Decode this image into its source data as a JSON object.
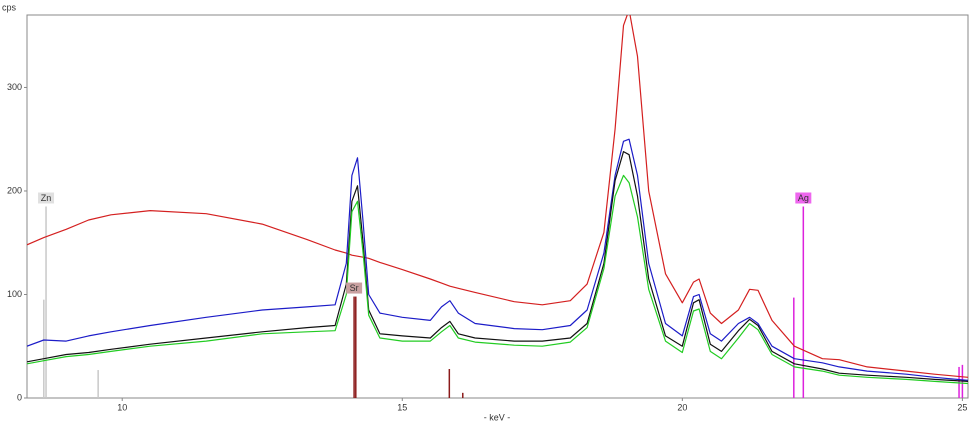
{
  "chart_data": {
    "type": "line",
    "y_label": "cps",
    "x_label": "- keV -",
    "xlim": [
      8.3,
      25.1
    ],
    "ylim": [
      0,
      370
    ],
    "xticks": [
      10,
      15,
      20,
      25
    ],
    "yticks": [
      0,
      100,
      200,
      300
    ],
    "x": [
      8.3,
      8.6,
      9.0,
      9.4,
      9.8,
      10.5,
      11.5,
      12.5,
      13.3,
      13.8,
      14.0,
      14.1,
      14.2,
      14.3,
      14.4,
      14.6,
      15.0,
      15.5,
      15.7,
      15.85,
      16.0,
      16.3,
      17.0,
      17.5,
      18.0,
      18.3,
      18.6,
      18.8,
      18.95,
      19.05,
      19.2,
      19.4,
      19.7,
      20.0,
      20.2,
      20.3,
      20.5,
      20.7,
      21.0,
      21.2,
      21.35,
      21.6,
      22.0,
      22.5,
      22.8,
      23.3,
      24.0,
      24.5,
      25.1
    ],
    "series": [
      {
        "color": "#d42020",
        "values": [
          148,
          155,
          163,
          172,
          177,
          181,
          178,
          168,
          153,
          143,
          140,
          138,
          137,
          136,
          135,
          131,
          124,
          115,
          111,
          108,
          106,
          102,
          93,
          90,
          94,
          110,
          160,
          260,
          360,
          375,
          330,
          200,
          120,
          92,
          112,
          115,
          82,
          72,
          85,
          105,
          104,
          75,
          50,
          38,
          37,
          30,
          26,
          23,
          20
        ]
      },
      {
        "color": "#1c1cc8",
        "values": [
          50,
          56,
          55,
          60,
          64,
          70,
          78,
          85,
          88,
          90,
          130,
          215,
          232,
          170,
          100,
          82,
          78,
          75,
          88,
          94,
          82,
          72,
          67,
          66,
          70,
          85,
          140,
          215,
          248,
          250,
          215,
          130,
          72,
          60,
          98,
          100,
          62,
          55,
          72,
          78,
          72,
          50,
          38,
          34,
          30,
          26,
          23,
          20,
          17
        ]
      },
      {
        "color": "#111111",
        "values": [
          35,
          38,
          42,
          44,
          47,
          52,
          58,
          64,
          68,
          70,
          110,
          190,
          205,
          150,
          85,
          62,
          60,
          58,
          68,
          74,
          62,
          58,
          55,
          55,
          58,
          72,
          130,
          210,
          238,
          235,
          195,
          115,
          60,
          50,
          92,
          95,
          52,
          45,
          65,
          76,
          70,
          45,
          33,
          28,
          24,
          22,
          20,
          18,
          16
        ]
      },
      {
        "color": "#22cc22",
        "values": [
          33,
          36,
          40,
          42,
          45,
          50,
          55,
          62,
          64,
          65,
          100,
          180,
          190,
          140,
          80,
          58,
          55,
          55,
          64,
          70,
          58,
          54,
          51,
          50,
          54,
          68,
          125,
          195,
          215,
          208,
          175,
          105,
          55,
          44,
          84,
          86,
          45,
          38,
          58,
          72,
          66,
          42,
          30,
          26,
          22,
          20,
          18,
          16,
          14
        ]
      }
    ],
    "element_lines": [
      {
        "label": "Zn",
        "color": "#c8c8c8",
        "tag_color": "#e0e0e0",
        "lines": [
          {
            "x": 8.64,
            "height": 185
          },
          {
            "x": 8.6,
            "height": 95
          },
          {
            "x": 9.57,
            "height": 27
          }
        ]
      },
      {
        "label": "Sr",
        "color": "#8b1a1a",
        "tag_color": "#c9a0a0",
        "lines": [
          {
            "x": 14.14,
            "height": 98
          },
          {
            "x": 14.17,
            "height": 98
          },
          {
            "x": 15.84,
            "height": 28
          },
          {
            "x": 16.08,
            "height": 5
          }
        ]
      },
      {
        "label": "Ag",
        "color": "#dd22dd",
        "tag_color": "#ee66ee",
        "lines": [
          {
            "x": 22.16,
            "height": 185
          },
          {
            "x": 21.99,
            "height": 97
          },
          {
            "x": 24.94,
            "height": 30
          },
          {
            "x": 25.0,
            "height": 32
          }
        ]
      }
    ]
  }
}
